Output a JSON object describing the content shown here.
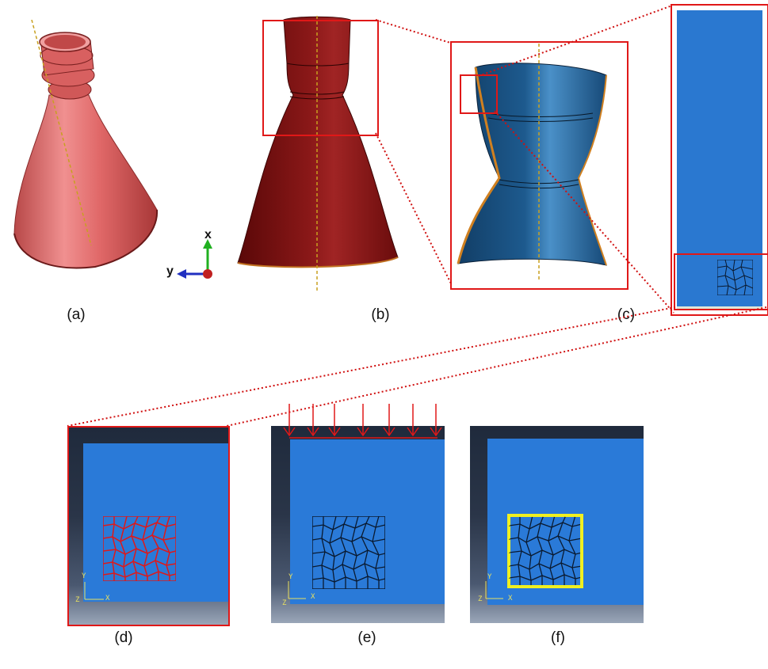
{
  "panels": {
    "a": "(a)",
    "b": "(b)",
    "c": "(c)",
    "d": "(d)",
    "e": "(e)",
    "f": "(f)"
  },
  "axes": {
    "x": "x",
    "y": "y"
  },
  "triad": {
    "y": "Y",
    "x": "X",
    "z": "Z"
  },
  "colors": {
    "nozzle_pink": "#e06868",
    "nozzle_red": "#7a1010",
    "nozzle_blue": "#1d5a8e",
    "plate_blue": "#2a7ad8",
    "highlight_red": "#e01818",
    "grain_yellow": "#f0f020"
  }
}
